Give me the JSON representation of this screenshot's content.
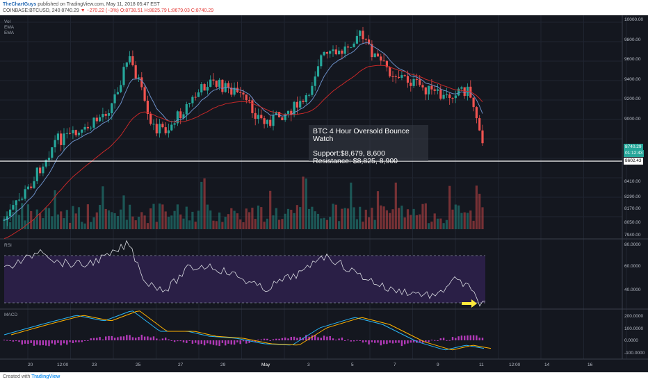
{
  "header": {
    "author": "TheChartGuys",
    "published": "published on TradingView.com, May 11, 2018 05:47 EST",
    "symbol": "COINBASE:BTCUSD, 240",
    "last": "8740.29",
    "change": "▼ −270.22 (−3%)",
    "ohlc": "O:8738.51 H:8825.79 L:8679.03 C:8740.29"
  },
  "indicators": {
    "vol": "Vol",
    "ema1": "EMA",
    "ema2": "EMA",
    "rsi": "RSI",
    "macd": "MACD"
  },
  "annotation": {
    "title": "BTC 4 Hour Oversold Bounce Watch",
    "support": "Support:$8,679, 8,600",
    "resistance": "Resistance: $8,825, 8,900"
  },
  "price_axis": [
    "10000.00",
    "9800.00",
    "9600.00",
    "9400.00",
    "9200.00",
    "9000.00",
    "8410.00",
    "8290.00",
    "8170.00",
    "8050.00",
    "7940.00"
  ],
  "price_tags": {
    "last": "8740.29",
    "timer": "01:12:43",
    "line": "8602.43"
  },
  "rsi_axis": [
    "80.0000",
    "60.0000",
    "40.0000"
  ],
  "macd_axis": [
    "200.0000",
    "100.0000",
    "0.0000",
    "-100.0000"
  ],
  "time_axis": [
    "20",
    "12:00",
    "23",
    "25",
    "27",
    "29",
    "May",
    "3",
    "5",
    "7",
    "9",
    "11",
    "12:00",
    "14",
    "16"
  ],
  "footer": {
    "created": "Created with",
    "brand": "TradingView"
  },
  "colors": {
    "up": "#26a69a",
    "down": "#ef5350",
    "ema_fast": "#6b8fc7",
    "ema_slow": "#c62828",
    "rsi_band": "#2a1f46",
    "arrow": "#ffeb3b"
  }
}
